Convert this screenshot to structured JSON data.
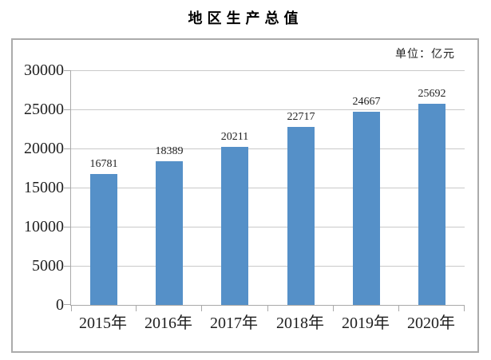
{
  "title": "地区生产总值",
  "unit_label": "单位：亿元",
  "colors": {
    "bar": "#5590C8",
    "grid": "#C9C9C9",
    "axis": "#A9A9A9",
    "frame_border": "#ABABAB",
    "text": "#1F1F1F"
  },
  "chart_data": {
    "type": "bar",
    "title": "地区生产总值",
    "unit": "亿元",
    "categories": [
      "2015年",
      "2016年",
      "2017年",
      "2018年",
      "2019年",
      "2020年"
    ],
    "values": [
      16781,
      18389,
      20211,
      22717,
      24667,
      25692
    ],
    "data_labels": [
      16781,
      18389,
      20211,
      22717,
      24667,
      25692
    ],
    "ylim": [
      0,
      30000
    ],
    "ytick_interval": 5000,
    "ytick_labels": [
      "0",
      "5000",
      "10000",
      "15000",
      "20000",
      "25000",
      "30000"
    ],
    "grid": true,
    "legend": "none",
    "bar_color": "#5590C8"
  }
}
